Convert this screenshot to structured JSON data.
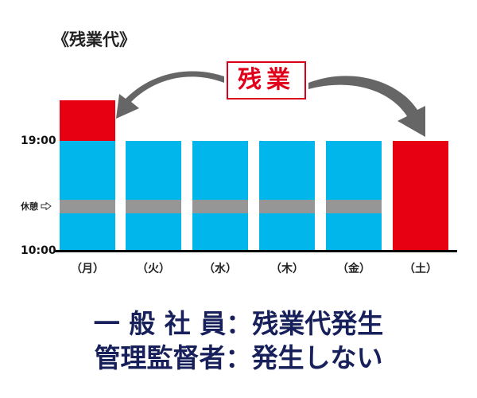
{
  "title": "《残業代》",
  "overtime_label": "残業",
  "y_labels": {
    "top": "19:00",
    "bottom": "10:00",
    "break": "休憩"
  },
  "break_arrow_icon": "outline-right-arrow",
  "days": [
    "（月）",
    "（火）",
    "（水）",
    "（木）",
    "（金）",
    "（土）"
  ],
  "colors": {
    "work": "#00b6eb",
    "overtime": "#e60012",
    "break": "#969696",
    "text": "#17205a"
  },
  "summary": {
    "line1": "一 般 社 員：残業代発生",
    "line2": "管理監督者：発生しない"
  }
}
